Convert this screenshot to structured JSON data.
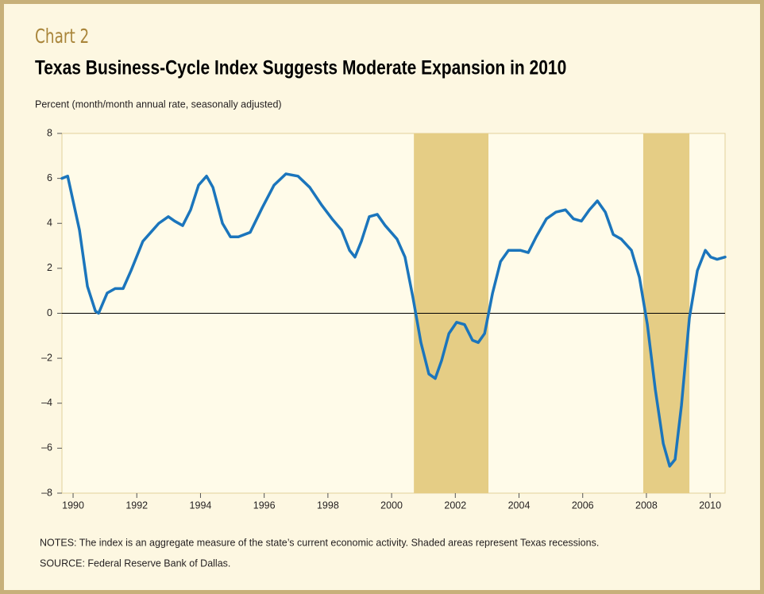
{
  "chart_data": {
    "type": "line",
    "kicker": "Chart 2",
    "title": "Texas Business-Cycle Index Suggests Moderate Expansion in 2010",
    "y_label": "Percent (month/month annual rate, seasonally adjusted)",
    "notes": "NOTES: The index is an aggregate measure of the state’s current economic activity. Shaded areas represent Texas recessions.",
    "source": "SOURCE: Federal Reserve Bank of Dallas.",
    "x": [
      1989.65,
      1989.83,
      1990.2,
      1990.45,
      1990.7,
      1990.8,
      1991.07,
      1991.32,
      1991.57,
      1991.82,
      1992.19,
      1992.44,
      1992.69,
      1992.99,
      1993.19,
      1993.44,
      1993.69,
      1993.94,
      1994.19,
      1994.39,
      1994.69,
      1994.94,
      1995.19,
      1995.56,
      1995.94,
      1996.31,
      1996.68,
      1997.06,
      1997.43,
      1997.81,
      1998.13,
      1998.43,
      1998.68,
      1998.85,
      1999.05,
      1999.3,
      1999.55,
      1999.8,
      2000.17,
      2000.42,
      2000.67,
      2000.92,
      2001.17,
      2001.37,
      2001.57,
      2001.8,
      2002.04,
      2002.29,
      2002.54,
      2002.72,
      2002.92,
      2003.17,
      2003.42,
      2003.67,
      2004.04,
      2004.29,
      2004.54,
      2004.86,
      2005.16,
      2005.46,
      2005.71,
      2005.96,
      2006.21,
      2006.46,
      2006.71,
      2006.96,
      2007.21,
      2007.53,
      2007.78,
      2008.03,
      2008.28,
      2008.53,
      2008.73,
      2008.9,
      2009.1,
      2009.35,
      2009.6,
      2009.85,
      2010.02,
      2010.22,
      2010.47
    ],
    "series": [
      {
        "color": "#1b75bc",
        "values": [
          6.0,
          6.1,
          3.7,
          1.2,
          0.1,
          0.0,
          0.9,
          1.1,
          1.1,
          1.9,
          3.2,
          3.6,
          4.0,
          4.3,
          4.1,
          3.9,
          4.6,
          5.7,
          6.1,
          5.6,
          4.0,
          3.4,
          3.4,
          3.6,
          4.7,
          5.7,
          6.2,
          6.1,
          5.6,
          4.8,
          4.2,
          3.7,
          2.8,
          2.5,
          3.2,
          4.3,
          4.4,
          3.9,
          3.3,
          2.5,
          0.7,
          -1.3,
          -2.7,
          -2.9,
          -2.1,
          -0.9,
          -0.4,
          -0.5,
          -1.2,
          -1.3,
          -0.9,
          0.9,
          2.3,
          2.8,
          2.8,
          2.7,
          3.4,
          4.2,
          4.5,
          4.6,
          4.2,
          4.1,
          4.6,
          5.0,
          4.5,
          3.5,
          3.3,
          2.8,
          1.6,
          -0.5,
          -3.4,
          -5.8,
          -6.8,
          -6.5,
          -4.1,
          -0.2,
          1.9,
          2.8,
          2.5,
          2.4,
          2.5
        ]
      }
    ],
    "recessions": [
      {
        "start": 2000.7,
        "end": 2003.04
      },
      {
        "start": 2007.9,
        "end": 2009.35
      }
    ],
    "recession_color": "#e5cd85",
    "xlim": [
      1989.65,
      2010.47
    ],
    "xticks": [
      1990,
      1992,
      1994,
      1996,
      1998,
      2000,
      2002,
      2004,
      2006,
      2008,
      2010
    ],
    "ylim": [
      -8,
      8
    ],
    "yticks": [
      {
        "value": -8,
        "label": "–8"
      },
      {
        "value": -6,
        "label": "–6"
      },
      {
        "value": -4,
        "label": "–4"
      },
      {
        "value": -2,
        "label": "–2"
      },
      0,
      2,
      4,
      6,
      8
    ]
  }
}
